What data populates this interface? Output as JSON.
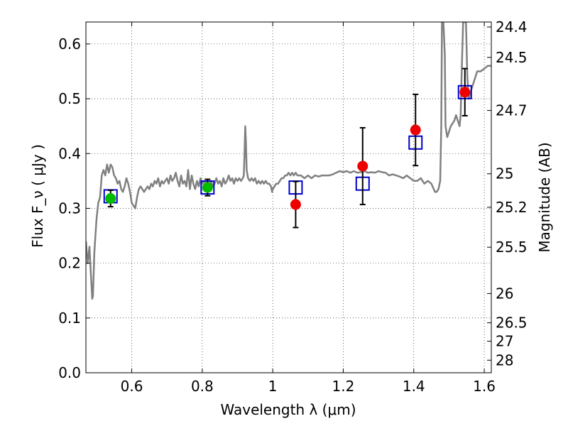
{
  "chart_data": {
    "type": "scatter",
    "xlabel": "Wavelength  λ (μm)",
    "ylabel": "Flux  F_ν  ( μJy )",
    "ylabel_right": "Magnitude (AB)",
    "xlim": [
      0.47,
      1.62
    ],
    "ylim": [
      0.0,
      0.64
    ],
    "grid": true,
    "x_ticks": [
      {
        "value": 0.6,
        "label": "0.6"
      },
      {
        "value": 0.8,
        "label": "0.8"
      },
      {
        "value": 1.0,
        "label": "1"
      },
      {
        "value": 1.2,
        "label": "1.2"
      },
      {
        "value": 1.4,
        "label": "1.4"
      },
      {
        "value": 1.6,
        "label": "1.6"
      }
    ],
    "y_ticks": [
      {
        "value": 0.0,
        "label": "0.0"
      },
      {
        "value": 0.1,
        "label": "0.1"
      },
      {
        "value": 0.2,
        "label": "0.2"
      },
      {
        "value": 0.3,
        "label": "0.3"
      },
      {
        "value": 0.4,
        "label": "0.4"
      },
      {
        "value": 0.5,
        "label": "0.5"
      },
      {
        "value": 0.6,
        "label": "0.6"
      }
    ],
    "right_ticks": [
      {
        "label": "24.4"
      },
      {
        "label": "24.5"
      },
      {
        "label": "24.7"
      },
      {
        "label": "25"
      },
      {
        "label": "25.2"
      },
      {
        "label": "25.5"
      },
      {
        "label": "26"
      },
      {
        "label": "26.5"
      },
      {
        "label": "27"
      },
      {
        "label": "28"
      }
    ],
    "series": [
      {
        "kind": "line",
        "color": "#808080",
        "points": [
          [
            0.47,
            0.24
          ],
          [
            0.475,
            0.2
          ],
          [
            0.48,
            0.23
          ],
          [
            0.484,
            0.18
          ],
          [
            0.488,
            0.135
          ],
          [
            0.49,
            0.14
          ],
          [
            0.494,
            0.22
          ],
          [
            0.5,
            0.28
          ],
          [
            0.505,
            0.31
          ],
          [
            0.51,
            0.32
          ],
          [
            0.515,
            0.36
          ],
          [
            0.52,
            0.37
          ],
          [
            0.525,
            0.36
          ],
          [
            0.53,
            0.38
          ],
          [
            0.535,
            0.365
          ],
          [
            0.54,
            0.38
          ],
          [
            0.545,
            0.375
          ],
          [
            0.55,
            0.36
          ],
          [
            0.555,
            0.355
          ],
          [
            0.56,
            0.345
          ],
          [
            0.565,
            0.35
          ],
          [
            0.57,
            0.335
          ],
          [
            0.575,
            0.33
          ],
          [
            0.58,
            0.34
          ],
          [
            0.585,
            0.355
          ],
          [
            0.59,
            0.345
          ],
          [
            0.595,
            0.33
          ],
          [
            0.6,
            0.31
          ],
          [
            0.605,
            0.305
          ],
          [
            0.61,
            0.3
          ],
          [
            0.615,
            0.32
          ],
          [
            0.62,
            0.335
          ],
          [
            0.625,
            0.34
          ],
          [
            0.63,
            0.335
          ],
          [
            0.635,
            0.33
          ],
          [
            0.64,
            0.335
          ],
          [
            0.645,
            0.34
          ],
          [
            0.65,
            0.335
          ],
          [
            0.655,
            0.345
          ],
          [
            0.66,
            0.34
          ],
          [
            0.665,
            0.35
          ],
          [
            0.67,
            0.345
          ],
          [
            0.675,
            0.355
          ],
          [
            0.68,
            0.34
          ],
          [
            0.685,
            0.35
          ],
          [
            0.69,
            0.345
          ],
          [
            0.695,
            0.35
          ],
          [
            0.7,
            0.355
          ],
          [
            0.705,
            0.345
          ],
          [
            0.71,
            0.36
          ],
          [
            0.715,
            0.35
          ],
          [
            0.72,
            0.355
          ],
          [
            0.725,
            0.365
          ],
          [
            0.73,
            0.35
          ],
          [
            0.735,
            0.34
          ],
          [
            0.74,
            0.36
          ],
          [
            0.745,
            0.345
          ],
          [
            0.75,
            0.35
          ],
          [
            0.755,
            0.34
          ],
          [
            0.76,
            0.37
          ],
          [
            0.765,
            0.335
          ],
          [
            0.77,
            0.36
          ],
          [
            0.775,
            0.345
          ],
          [
            0.78,
            0.335
          ],
          [
            0.785,
            0.35
          ],
          [
            0.79,
            0.34
          ],
          [
            0.795,
            0.355
          ],
          [
            0.8,
            0.345
          ],
          [
            0.805,
            0.35
          ],
          [
            0.81,
            0.345
          ],
          [
            0.815,
            0.34
          ],
          [
            0.82,
            0.345
          ],
          [
            0.825,
            0.35
          ],
          [
            0.83,
            0.34
          ],
          [
            0.835,
            0.345
          ],
          [
            0.84,
            0.355
          ],
          [
            0.845,
            0.345
          ],
          [
            0.85,
            0.35
          ],
          [
            0.855,
            0.34
          ],
          [
            0.86,
            0.355
          ],
          [
            0.865,
            0.345
          ],
          [
            0.87,
            0.35
          ],
          [
            0.875,
            0.36
          ],
          [
            0.88,
            0.35
          ],
          [
            0.885,
            0.355
          ],
          [
            0.89,
            0.345
          ],
          [
            0.895,
            0.355
          ],
          [
            0.9,
            0.35
          ],
          [
            0.905,
            0.355
          ],
          [
            0.91,
            0.35
          ],
          [
            0.915,
            0.355
          ],
          [
            0.918,
            0.36
          ],
          [
            0.92,
            0.4
          ],
          [
            0.922,
            0.45
          ],
          [
            0.924,
            0.42
          ],
          [
            0.926,
            0.37
          ],
          [
            0.93,
            0.355
          ],
          [
            0.935,
            0.35
          ],
          [
            0.94,
            0.355
          ],
          [
            0.945,
            0.35
          ],
          [
            0.95,
            0.355
          ],
          [
            0.955,
            0.345
          ],
          [
            0.96,
            0.35
          ],
          [
            0.965,
            0.345
          ],
          [
            0.97,
            0.35
          ],
          [
            0.975,
            0.345
          ],
          [
            0.98,
            0.35
          ],
          [
            0.985,
            0.345
          ],
          [
            0.99,
            0.345
          ],
          [
            0.995,
            0.34
          ],
          [
            0.998,
            0.33
          ],
          [
            1.0,
            0.335
          ],
          [
            1.005,
            0.34
          ],
          [
            1.01,
            0.345
          ],
          [
            1.015,
            0.345
          ],
          [
            1.02,
            0.35
          ],
          [
            1.025,
            0.355
          ],
          [
            1.03,
            0.355
          ],
          [
            1.035,
            0.36
          ],
          [
            1.04,
            0.36
          ],
          [
            1.045,
            0.365
          ],
          [
            1.05,
            0.36
          ],
          [
            1.055,
            0.365
          ],
          [
            1.06,
            0.36
          ],
          [
            1.065,
            0.365
          ],
          [
            1.07,
            0.36
          ],
          [
            1.08,
            0.36
          ],
          [
            1.09,
            0.355
          ],
          [
            1.1,
            0.36
          ],
          [
            1.11,
            0.355
          ],
          [
            1.12,
            0.36
          ],
          [
            1.13,
            0.358
          ],
          [
            1.14,
            0.36
          ],
          [
            1.15,
            0.36
          ],
          [
            1.16,
            0.36
          ],
          [
            1.17,
            0.362
          ],
          [
            1.18,
            0.365
          ],
          [
            1.19,
            0.368
          ],
          [
            1.2,
            0.366
          ],
          [
            1.21,
            0.368
          ],
          [
            1.22,
            0.365
          ],
          [
            1.23,
            0.368
          ],
          [
            1.24,
            0.365
          ],
          [
            1.25,
            0.366
          ],
          [
            1.26,
            0.368
          ],
          [
            1.27,
            0.365
          ],
          [
            1.28,
            0.366
          ],
          [
            1.29,
            0.365
          ],
          [
            1.3,
            0.368
          ],
          [
            1.31,
            0.366
          ],
          [
            1.32,
            0.365
          ],
          [
            1.33,
            0.36
          ],
          [
            1.34,
            0.362
          ],
          [
            1.35,
            0.36
          ],
          [
            1.36,
            0.358
          ],
          [
            1.37,
            0.355
          ],
          [
            1.38,
            0.36
          ],
          [
            1.39,
            0.355
          ],
          [
            1.4,
            0.35
          ],
          [
            1.41,
            0.35
          ],
          [
            1.42,
            0.355
          ],
          [
            1.43,
            0.345
          ],
          [
            1.44,
            0.35
          ],
          [
            1.45,
            0.345
          ],
          [
            1.46,
            0.33
          ],
          [
            1.465,
            0.33
          ],
          [
            1.47,
            0.335
          ],
          [
            1.475,
            0.35
          ],
          [
            1.478,
            0.45
          ],
          [
            1.48,
            0.64
          ],
          [
            1.484,
            0.64
          ],
          [
            1.488,
            0.58
          ],
          [
            1.49,
            0.45
          ],
          [
            1.495,
            0.43
          ],
          [
            1.5,
            0.44
          ],
          [
            1.505,
            0.45
          ],
          [
            1.51,
            0.455
          ],
          [
            1.515,
            0.46
          ],
          [
            1.52,
            0.47
          ],
          [
            1.525,
            0.46
          ],
          [
            1.53,
            0.45
          ],
          [
            1.533,
            0.47
          ],
          [
            1.536,
            0.55
          ],
          [
            1.54,
            0.64
          ],
          [
            1.548,
            0.64
          ],
          [
            1.552,
            0.54
          ],
          [
            1.556,
            0.5
          ],
          [
            1.56,
            0.51
          ],
          [
            1.565,
            0.52
          ],
          [
            1.57,
            0.53
          ],
          [
            1.58,
            0.55
          ],
          [
            1.59,
            0.55
          ],
          [
            1.6,
            0.555
          ],
          [
            1.61,
            0.56
          ],
          [
            1.62,
            0.56
          ]
        ]
      },
      {
        "kind": "open-square",
        "color": "#0000cc",
        "points": [
          {
            "x": 0.54,
            "y": 0.322
          },
          {
            "x": 0.815,
            "y": 0.338
          },
          {
            "x": 1.065,
            "y": 0.338
          },
          {
            "x": 1.255,
            "y": 0.345
          },
          {
            "x": 1.405,
            "y": 0.42
          },
          {
            "x": 1.545,
            "y": 0.512
          }
        ]
      },
      {
        "kind": "filled-circle",
        "color": "#00bb00",
        "points": [
          {
            "x": 0.54,
            "y": 0.318,
            "err": 0.015
          },
          {
            "x": 0.815,
            "y": 0.338,
            "err": 0.015
          }
        ]
      },
      {
        "kind": "filled-circle",
        "color": "#ee0000",
        "points": [
          {
            "x": 1.065,
            "y": 0.307,
            "err": 0.042
          },
          {
            "x": 1.255,
            "y": 0.377,
            "err": 0.07
          },
          {
            "x": 1.405,
            "y": 0.443,
            "err": 0.065
          },
          {
            "x": 1.545,
            "y": 0.512,
            "err": 0.043
          }
        ]
      }
    ]
  }
}
